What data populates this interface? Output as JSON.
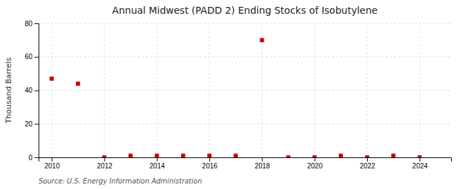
{
  "chart_data": {
    "type": "scatter",
    "title": "Annual Midwest (PADD 2) Ending Stocks of Isobutylene",
    "ylabel": "Thousand Barrels",
    "annotations": [
      "Source: U.S. Energy Information Administration"
    ],
    "x": [
      2010,
      2011,
      2012,
      2013,
      2014,
      2015,
      2016,
      2017,
      2018,
      2019,
      2020,
      2021,
      2022,
      2023,
      2024
    ],
    "values": [
      47,
      44,
      0,
      1,
      1,
      1,
      1,
      1,
      70,
      0,
      0,
      1,
      0,
      1,
      0
    ],
    "color": "#cc0000",
    "marker": "square",
    "xlim": [
      2009.5,
      2025.2
    ],
    "xticks": [
      2010,
      2012,
      2014,
      2016,
      2018,
      2020,
      2022,
      2024
    ],
    "ylim": [
      0,
      80
    ],
    "yticks": [
      0,
      20,
      40,
      60,
      80
    ],
    "grid": true
  }
}
